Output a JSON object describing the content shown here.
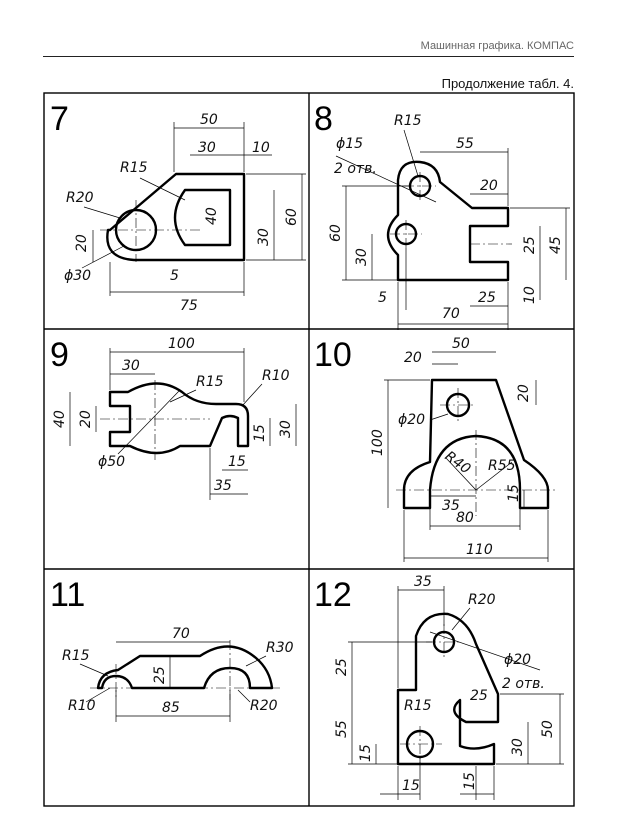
{
  "header": {
    "title": "Машинная графика. КОМПАС",
    "continuation": "Продолжение табл. 4."
  },
  "cells": [
    {
      "number": "7",
      "dims": {
        "d50": "50",
        "d30": "30",
        "d10": "10",
        "r15": "R15",
        "r20": "R20",
        "d40": "40",
        "d60": "60",
        "d30b": "30",
        "d20": "20",
        "phi30": "ϕ30",
        "d5": "5",
        "d75": "75"
      }
    },
    {
      "number": "8",
      "dims": {
        "r15": "R15",
        "phi15": "ϕ15",
        "holes": "2 отв.",
        "d55": "55",
        "d20": "20",
        "d60": "60",
        "d30": "30",
        "d25": "25",
        "d45": "45",
        "d5": "5",
        "d70": "70",
        "d25b": "25",
        "d10": "10"
      }
    },
    {
      "number": "9",
      "dims": {
        "d100": "100",
        "d30": "30",
        "r15": "R15",
        "r10": "R10",
        "d40": "40",
        "d20": "20",
        "d15": "15",
        "d30b": "30",
        "phi50": "ϕ50",
        "d15b": "15",
        "d35": "35"
      }
    },
    {
      "number": "10",
      "dims": {
        "d20": "20",
        "d50": "50",
        "d20b": "20",
        "phi20": "ϕ20",
        "d100": "100",
        "r40": "R40",
        "r55": "R55",
        "d15": "15",
        "d35": "35",
        "d80": "80",
        "d110": "110"
      }
    },
    {
      "number": "11",
      "dims": {
        "d70": "70",
        "r15": "R15",
        "r30": "R30",
        "d25": "25",
        "r10": "R10",
        "d85": "85",
        "r20": "R20"
      }
    },
    {
      "number": "12",
      "dims": {
        "d35": "35",
        "r20": "R20",
        "phi20": "ϕ20",
        "holes": "2 отв.",
        "d25": "25",
        "d25b": "25",
        "r15": "R15",
        "d55": "55",
        "d50": "50",
        "d30": "30",
        "d15": "15",
        "d15b": "15",
        "d15c": "15"
      }
    }
  ]
}
